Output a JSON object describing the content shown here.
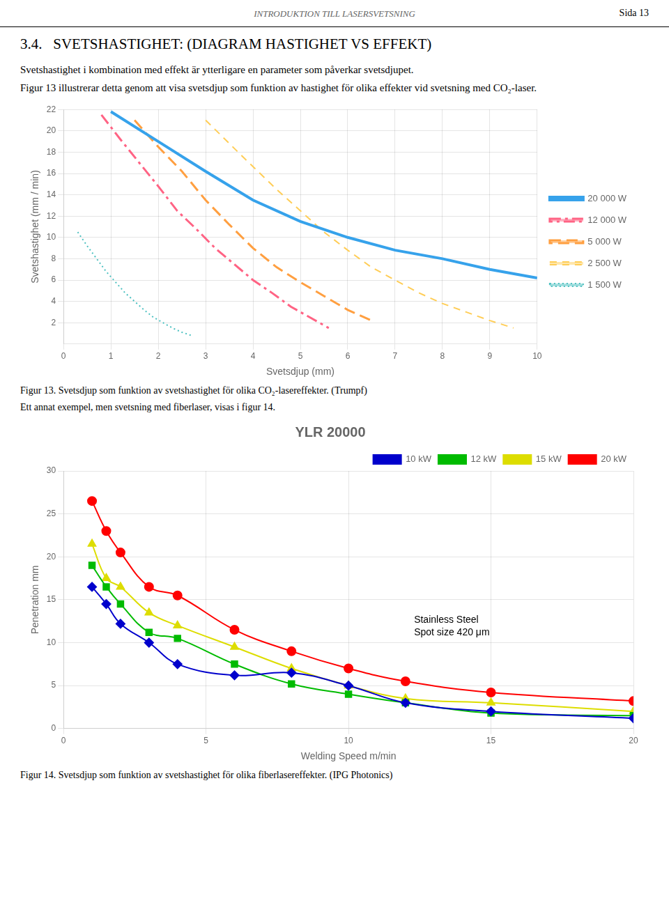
{
  "page_header": "INTRODUKTION TILL LASERSVETSNING",
  "page_number": "Sida 13",
  "section_title": "3.4.   SVETSHASTIGHET: (DIAGRAM HASTIGHET VS EFFEKT)",
  "body_text": [
    "Svetshastighet i kombination med effekt är ytterligare en parameter som påverkar svetsdjupet.",
    "Figur 13 illustrerar detta genom att visa svetsdjup som funktion av hastighet för olika effekter vid svetsning med CO₂-laser."
  ],
  "between_text": "Ett annat exempel, men svetsning med fiberlaser, visas i figur 14.",
  "chart_data": [
    {
      "type": "line",
      "x_label": "Svetsdjup (mm)",
      "y_label": "Svetshastighet (mm / min)",
      "xlim": [
        0,
        10
      ],
      "xticks": [
        0,
        1,
        2,
        3,
        4,
        5,
        6,
        7,
        8,
        9,
        10
      ],
      "ylim": [
        0,
        22
      ],
      "yticks": [
        2,
        4,
        6,
        8,
        10,
        12,
        14,
        16,
        18,
        20,
        22
      ],
      "grid": true,
      "legend": "right",
      "caption": "Figur 13. Svetsdjup som funktion av svetshastighet för olika CO₂-lasereffekter. (Trumpf)",
      "series": [
        {
          "name": "20 000 W",
          "line_style": "solid",
          "x": [
            1.0,
            2.0,
            3.0,
            4.0,
            5.0,
            6.0,
            7.0,
            8.0,
            9.0,
            10.0
          ],
          "values": [
            21.8,
            19.0,
            16.2,
            13.5,
            11.5,
            10.0,
            8.8,
            8.0,
            7.0,
            6.2
          ]
        },
        {
          "name": "12 000 W",
          "line_style": "dashdot",
          "x": [
            0.8,
            1.2,
            1.6,
            2.0,
            2.4,
            2.8,
            3.2,
            3.6,
            4.0,
            4.4,
            4.8,
            5.2,
            5.6
          ],
          "values": [
            21.5,
            19.2,
            17.0,
            14.8,
            12.5,
            10.8,
            9.0,
            7.5,
            6.0,
            4.8,
            3.5,
            2.5,
            1.5
          ]
        },
        {
          "name": "5 000 W",
          "line_style": "dashed",
          "x": [
            1.5,
            2.0,
            2.5,
            3.0,
            3.5,
            4.0,
            4.5,
            5.0,
            5.5,
            6.0,
            6.5
          ],
          "values": [
            21.0,
            18.5,
            16.2,
            13.5,
            11.2,
            9.0,
            7.2,
            5.8,
            4.5,
            3.2,
            2.2
          ]
        },
        {
          "name": "2 500 W",
          "line_style": "dashed_thin",
          "x": [
            3.0,
            3.8,
            4.5,
            5.0,
            5.5,
            6.0,
            6.5,
            7.0,
            7.5,
            8.0,
            8.5,
            9.0,
            9.5
          ],
          "values": [
            21.0,
            17.5,
            14.5,
            12.5,
            10.5,
            8.8,
            7.2,
            6.0,
            4.8,
            3.8,
            3.0,
            2.2,
            1.5
          ]
        },
        {
          "name": "1 500 W",
          "line_style": "dotted",
          "x": [
            0.3,
            0.5,
            0.7,
            0.9,
            1.1,
            1.3,
            1.5,
            1.7,
            1.9,
            2.1,
            2.3,
            2.5,
            2.7
          ],
          "values": [
            10.5,
            9.2,
            8.0,
            6.8,
            5.8,
            4.8,
            4.0,
            3.2,
            2.5,
            2.0,
            1.5,
            1.1,
            0.8
          ]
        }
      ]
    },
    {
      "type": "line",
      "title": "YLR 20000",
      "x_label": "Welding Speed m/min",
      "y_label": "Penetration mm",
      "xlim": [
        0,
        20
      ],
      "xticks": [
        0,
        5,
        10,
        15,
        20
      ],
      "ylim": [
        0,
        30
      ],
      "yticks": [
        0,
        5,
        10,
        15,
        20,
        25,
        30
      ],
      "grid": true,
      "legend": "upper right",
      "annotation": "Stainless Steel\nSpot size 420 μm",
      "caption": "Figur 14. Svetsdjup som funktion av svetshastighet för olika fiberlasereffekter. (IPG Photonics)",
      "series": [
        {
          "name": "10 kW",
          "color": "#0000CC",
          "marker": "diamond",
          "x": [
            1,
            1.5,
            2,
            3,
            4,
            6,
            8,
            10,
            12,
            15,
            20
          ],
          "values": [
            16.5,
            14.5,
            12.2,
            10.0,
            7.5,
            6.2,
            6.5,
            5.0,
            3.0,
            2.0,
            1.2
          ]
        },
        {
          "name": "12 kW",
          "color": "#00BB00",
          "marker": "square",
          "x": [
            1,
            1.5,
            2,
            3,
            4,
            6,
            8,
            10,
            12,
            15,
            20
          ],
          "values": [
            19.0,
            16.5,
            14.5,
            11.2,
            10.5,
            7.5,
            5.2,
            4.0,
            3.0,
            1.8,
            1.5
          ]
        },
        {
          "name": "15 kW",
          "color": "#DDDD00",
          "marker": "triangle",
          "x": [
            1,
            1.5,
            2,
            3,
            4,
            6,
            8,
            10,
            12,
            15,
            20
          ],
          "values": [
            21.5,
            17.5,
            16.5,
            13.5,
            12.0,
            9.5,
            7.0,
            5.0,
            3.5,
            3.0,
            2.0
          ]
        },
        {
          "name": "20 kW",
          "color": "#FF0000",
          "marker": "circle",
          "x": [
            1,
            1.5,
            2,
            3,
            4,
            6,
            8,
            10,
            12,
            15,
            20
          ],
          "values": [
            26.5,
            23.0,
            20.5,
            16.5,
            15.5,
            11.5,
            9.0,
            7.0,
            5.5,
            4.2,
            3.2
          ]
        }
      ]
    }
  ]
}
